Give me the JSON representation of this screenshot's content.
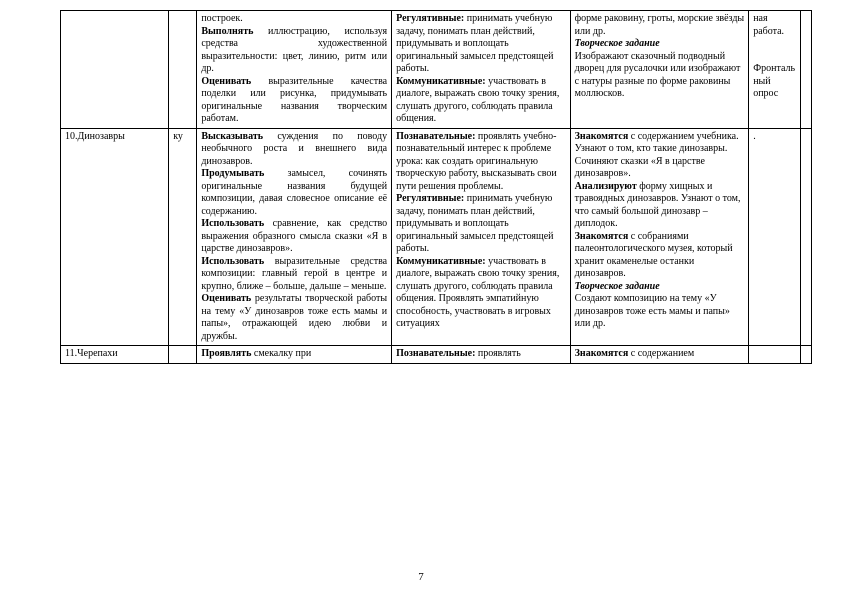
{
  "table": {
    "columns_css": [
      "col1",
      "col2",
      "col3",
      "col4",
      "col5",
      "col6",
      "col7"
    ],
    "rows": [
      {
        "c1": "",
        "c2": "",
        "c3": "построек.\n<b>Выполнять</b> иллюстрацию, используя средства художественной выразительности: цвет, линию, ритм или др.\n<b>Оценивать</b> выразительные качества поделки или рисунка, придумывать оригинальные названия творческим работам.",
        "c4": "<b>Регулятивные:</b> принимать учебную задачу, понимать план действий, придумывать и воплощать оригинальный замысел предстоящей работы.\n<b>Коммуникативные:</b> участвовать в диалоге, выражать свою точку зрения, слушать другого, соблюдать правила общения.",
        "c5": "форме раковину, гроты, морские звёзды или др.\n<bi>Творческое задание</bi>\nИзображают сказочный подводный дворец для русалочки или изображают с натуры разные по форме раковины моллюсков.",
        "c6": "ная работа.\n\n\nФронтальный опрос",
        "c7": ""
      },
      {
        "c1": "10.Динозавры",
        "c2": "ку",
        "c3": "<b>Высказывать</b> суждения по поводу необычного роста и внешнего вида динозавров.\n<b>Продумывать</b> замысел, сочинять оригинальные названия будущей композиции, давая словесное описание её содержанию.\n<b>Использовать</b> сравнение, как средство выражения образного смысла сказки «Я в царстве динозавров».\n<b>Использовать</b> выразительные средства композиции: главный герой в центре и крупно, ближе – больше, дальше – меньше.\n<b>Оценивать</b> результаты творческой работы на тему «У динозавров тоже есть мамы и папы», отражающей идею любви и дружбы.",
        "c4": "<b>Познавательные:</b> проявлять учебно-познавательный интерес к проблеме урока: как создать оригинальную творческую работу, высказывать свои пути решения проблемы.\n<b>Регулятивные:</b> принимать учебную задачу, понимать план действий, придумывать и воплощать оригинальный замысел предстоящей работы.\n<b>Коммуникативные:</b> участвовать в диалоге, выражать свою точку зрения, слушать другого, соблюдать правила общения. Проявлять эмпатийную способность, участвовать в игровых ситуациях",
        "c5": "<b>Знакомятся</b> с содержанием учебника.\nУзнают о том, кто такие динозавры.\nСочиняют сказки «Я в царстве динозавров».\n<b>Анализируют</b> форму хищных и травоядных динозавров. Узнают о том, что самый большой динозавр – диплодок.\n<b>Знакомятся</b> с собраниями палеонтологического музея, который хранит окаменелые останки динозавров.\n<bi>Творческое задание</bi>\nСоздают композицию на тему «У динозавров тоже есть мамы и папы» или др.",
        "c6": ".",
        "c7": ""
      },
      {
        "c1": "11.Черепахи",
        "c2": "",
        "c3": "<b>Проявлять</b> смекалку при",
        "c4": "<b>Познавательные:</b> проявлять",
        "c5": "<b>Знакомятся</b> с содержанием",
        "c6": "",
        "c7": ""
      }
    ]
  },
  "pagenum": "7"
}
